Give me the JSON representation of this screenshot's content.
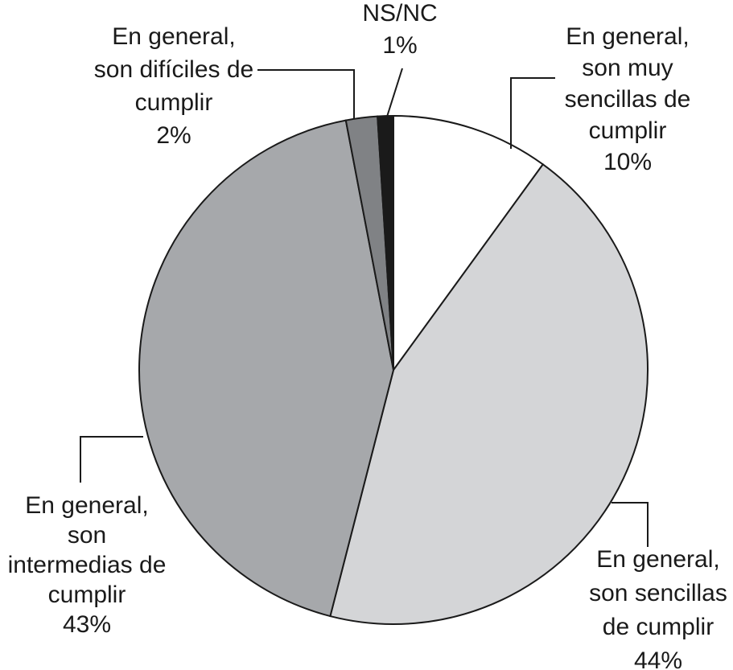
{
  "chart_data": {
    "type": "pie",
    "categories": [
      "En general, son muy sencillas de cumplir",
      "En general, son sencillas de cumplir",
      "En general, son intermedias de cumplir",
      "En general, son difíciles de cumplir",
      "NS/NC"
    ],
    "values": [
      10,
      44,
      43,
      2,
      1
    ],
    "value_labels": [
      "10%",
      "44%",
      "43%",
      "2%",
      "1%"
    ],
    "colors": [
      "#ffffff",
      "#d4d5d7",
      "#a6a8ab",
      "#808285",
      "#1a1a1a"
    ]
  }
}
